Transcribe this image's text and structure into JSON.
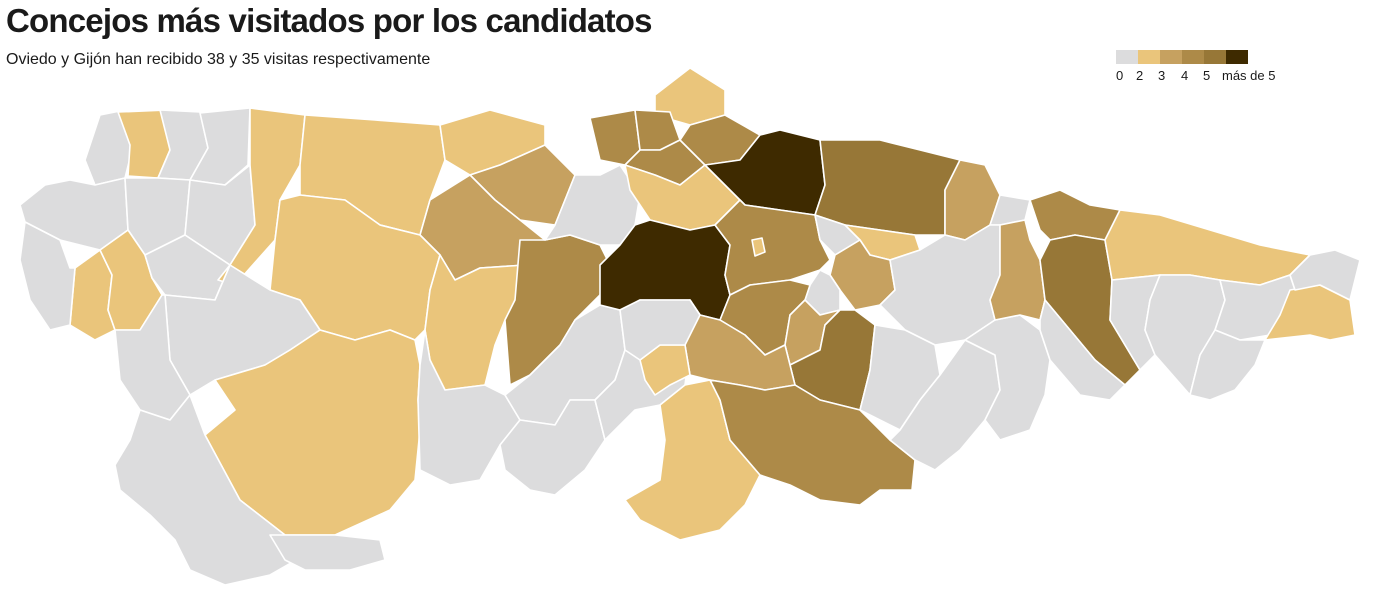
{
  "title": "Concejos más visitados por los candidatos",
  "subtitle": "Oviedo y Gijón han recibido 38 y 35 visitas respectivamente",
  "legend": {
    "labels": [
      "0",
      "2",
      "3",
      "4",
      "5",
      "más de 5"
    ],
    "colors": [
      "#dcdcdd",
      "#eac57b",
      "#c6a160",
      "#ad8a48",
      "#977737",
      "#3e2a00"
    ]
  },
  "map": {
    "colors": {
      "0": "#dcdcdd",
      "2": "#eac57b",
      "3": "#c6a160",
      "4": "#ad8a48",
      "5": "#977737",
      "6": "#3e2a00"
    }
  }
}
